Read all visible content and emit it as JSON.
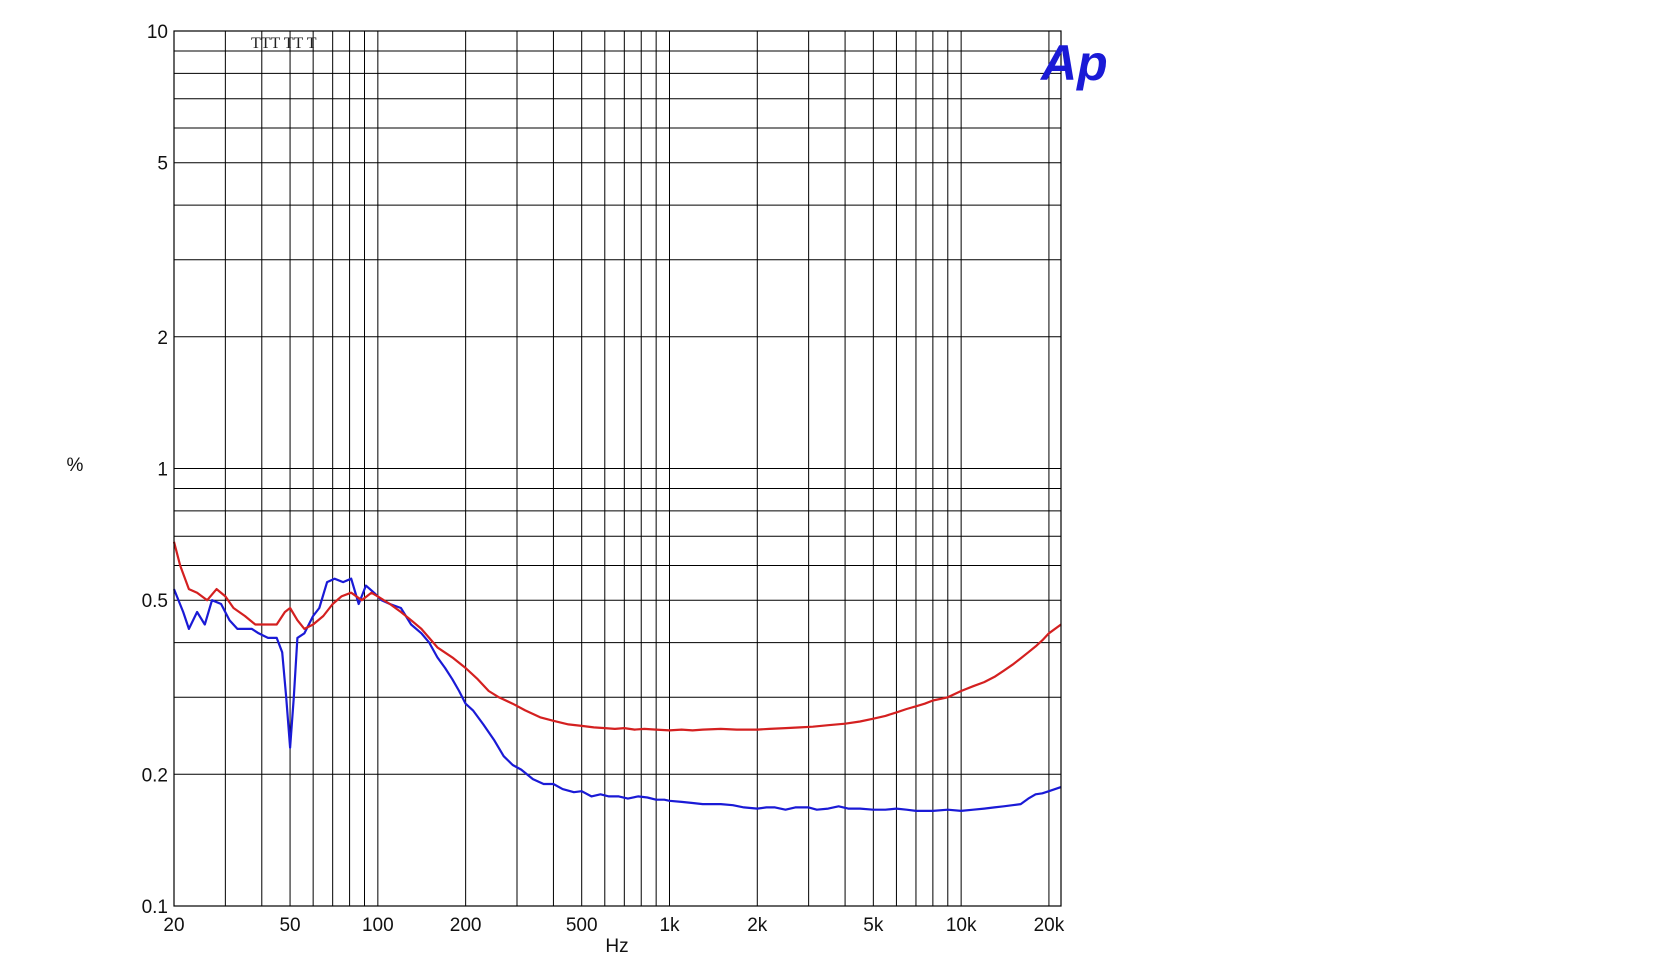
{
  "chart_data": {
    "type": "line",
    "x_scale": "log",
    "y_scale": "log",
    "xlabel": "Hz",
    "ylabel": "%",
    "xlim": [
      20,
      22000
    ],
    "ylim": [
      0.1,
      10
    ],
    "grid": true,
    "legend": "none",
    "x_ticks": [
      {
        "value": 20,
        "label": "20"
      },
      {
        "value": 50,
        "label": "50"
      },
      {
        "value": 100,
        "label": "100"
      },
      {
        "value": 200,
        "label": "200"
      },
      {
        "value": 500,
        "label": "500"
      },
      {
        "value": 1000,
        "label": "1k"
      },
      {
        "value": 2000,
        "label": "2k"
      },
      {
        "value": 5000,
        "label": "5k"
      },
      {
        "value": 10000,
        "label": "10k"
      },
      {
        "value": 20000,
        "label": "20k"
      }
    ],
    "y_ticks": [
      {
        "value": 0.1,
        "label": "0.1"
      },
      {
        "value": 0.2,
        "label": "0.2"
      },
      {
        "value": 0.5,
        "label": "0.5"
      },
      {
        "value": 1,
        "label": "1"
      },
      {
        "value": 2,
        "label": "2"
      },
      {
        "value": 5,
        "label": "5"
      },
      {
        "value": 10,
        "label": "10"
      }
    ],
    "x_minor_grid": [
      30,
      40,
      60,
      70,
      80,
      90,
      300,
      400,
      600,
      700,
      800,
      900,
      3000,
      4000,
      6000,
      7000,
      8000,
      9000
    ],
    "y_minor_grid": [
      0.3,
      0.4,
      0.6,
      0.7,
      0.8,
      0.9,
      3,
      4,
      6,
      7,
      8,
      9
    ],
    "markers": {
      "text": "TTT TT T",
      "values": [
        40,
        45,
        50,
        55,
        60,
        70
      ]
    },
    "logo": "Ap",
    "series": [
      {
        "color": "#1a1ad6",
        "points": [
          [
            20,
            0.53
          ],
          [
            21.5,
            0.47
          ],
          [
            22.5,
            0.43
          ],
          [
            24,
            0.47
          ],
          [
            25.5,
            0.44
          ],
          [
            27,
            0.5
          ],
          [
            29,
            0.49
          ],
          [
            31,
            0.45
          ],
          [
            33,
            0.43
          ],
          [
            35,
            0.43
          ],
          [
            37,
            0.43
          ],
          [
            39,
            0.42
          ],
          [
            42,
            0.41
          ],
          [
            45,
            0.41
          ],
          [
            47,
            0.38
          ],
          [
            48.5,
            0.3
          ],
          [
            50,
            0.23
          ],
          [
            51.5,
            0.3
          ],
          [
            53,
            0.41
          ],
          [
            56,
            0.42
          ],
          [
            60,
            0.46
          ],
          [
            63,
            0.48
          ],
          [
            67,
            0.55
          ],
          [
            71,
            0.56
          ],
          [
            76,
            0.55
          ],
          [
            81,
            0.56
          ],
          [
            86,
            0.49
          ],
          [
            91,
            0.54
          ],
          [
            97,
            0.52
          ],
          [
            103,
            0.5
          ],
          [
            110,
            0.49
          ],
          [
            120,
            0.48
          ],
          [
            130,
            0.44
          ],
          [
            141,
            0.42
          ],
          [
            150,
            0.4
          ],
          [
            160,
            0.37
          ],
          [
            170,
            0.35
          ],
          [
            180,
            0.33
          ],
          [
            190,
            0.31
          ],
          [
            200,
            0.29
          ],
          [
            212,
            0.28
          ],
          [
            230,
            0.26
          ],
          [
            250,
            0.24
          ],
          [
            270,
            0.22
          ],
          [
            290,
            0.21
          ],
          [
            310,
            0.205
          ],
          [
            340,
            0.195
          ],
          [
            370,
            0.19
          ],
          [
            400,
            0.19
          ],
          [
            430,
            0.185
          ],
          [
            470,
            0.182
          ],
          [
            500,
            0.183
          ],
          [
            540,
            0.178
          ],
          [
            580,
            0.18
          ],
          [
            620,
            0.178
          ],
          [
            670,
            0.178
          ],
          [
            720,
            0.176
          ],
          [
            780,
            0.178
          ],
          [
            840,
            0.177
          ],
          [
            900,
            0.175
          ],
          [
            960,
            0.175
          ],
          [
            1000,
            0.174
          ],
          [
            1100,
            0.173
          ],
          [
            1200,
            0.172
          ],
          [
            1300,
            0.171
          ],
          [
            1400,
            0.171
          ],
          [
            1500,
            0.171
          ],
          [
            1650,
            0.17
          ],
          [
            1800,
            0.168
          ],
          [
            2000,
            0.167
          ],
          [
            2150,
            0.168
          ],
          [
            2300,
            0.168
          ],
          [
            2500,
            0.166
          ],
          [
            2700,
            0.168
          ],
          [
            3000,
            0.168
          ],
          [
            3200,
            0.166
          ],
          [
            3500,
            0.167
          ],
          [
            3800,
            0.169
          ],
          [
            4100,
            0.167
          ],
          [
            4500,
            0.167
          ],
          [
            5000,
            0.166
          ],
          [
            5500,
            0.166
          ],
          [
            6000,
            0.167
          ],
          [
            6500,
            0.166
          ],
          [
            7000,
            0.165
          ],
          [
            7500,
            0.165
          ],
          [
            8000,
            0.165
          ],
          [
            9000,
            0.166
          ],
          [
            10000,
            0.165
          ],
          [
            11000,
            0.166
          ],
          [
            12000,
            0.167
          ],
          [
            13000,
            0.168
          ],
          [
            14000,
            0.169
          ],
          [
            15000,
            0.17
          ],
          [
            16000,
            0.171
          ],
          [
            17000,
            0.176
          ],
          [
            18000,
            0.18
          ],
          [
            19000,
            0.181
          ],
          [
            20000,
            0.183
          ],
          [
            22000,
            0.187
          ]
        ]
      },
      {
        "color": "#d42020",
        "points": [
          [
            20,
            0.68
          ],
          [
            21,
            0.6
          ],
          [
            22.5,
            0.53
          ],
          [
            24,
            0.52
          ],
          [
            26,
            0.5
          ],
          [
            28,
            0.53
          ],
          [
            30,
            0.51
          ],
          [
            32,
            0.48
          ],
          [
            35,
            0.46
          ],
          [
            38,
            0.44
          ],
          [
            42,
            0.44
          ],
          [
            45,
            0.44
          ],
          [
            48,
            0.47
          ],
          [
            50,
            0.48
          ],
          [
            53,
            0.45
          ],
          [
            56,
            0.43
          ],
          [
            60,
            0.44
          ],
          [
            65,
            0.46
          ],
          [
            70,
            0.49
          ],
          [
            75,
            0.51
          ],
          [
            81,
            0.52
          ],
          [
            88,
            0.5
          ],
          [
            95,
            0.52
          ],
          [
            100,
            0.51
          ],
          [
            110,
            0.49
          ],
          [
            120,
            0.47
          ],
          [
            130,
            0.45
          ],
          [
            141,
            0.43
          ],
          [
            150,
            0.41
          ],
          [
            160,
            0.39
          ],
          [
            180,
            0.37
          ],
          [
            200,
            0.35
          ],
          [
            220,
            0.33
          ],
          [
            240,
            0.31
          ],
          [
            260,
            0.3
          ],
          [
            290,
            0.29
          ],
          [
            320,
            0.28
          ],
          [
            360,
            0.27
          ],
          [
            400,
            0.265
          ],
          [
            450,
            0.26
          ],
          [
            500,
            0.258
          ],
          [
            550,
            0.256
          ],
          [
            600,
            0.255
          ],
          [
            650,
            0.254
          ],
          [
            700,
            0.255
          ],
          [
            760,
            0.253
          ],
          [
            820,
            0.254
          ],
          [
            900,
            0.253
          ],
          [
            1000,
            0.252
          ],
          [
            1100,
            0.253
          ],
          [
            1200,
            0.252
          ],
          [
            1300,
            0.253
          ],
          [
            1500,
            0.254
          ],
          [
            1700,
            0.253
          ],
          [
            2000,
            0.253
          ],
          [
            2200,
            0.254
          ],
          [
            2500,
            0.255
          ],
          [
            2800,
            0.256
          ],
          [
            3100,
            0.257
          ],
          [
            3500,
            0.259
          ],
          [
            4000,
            0.261
          ],
          [
            4500,
            0.264
          ],
          [
            5000,
            0.268
          ],
          [
            5500,
            0.272
          ],
          [
            6000,
            0.277
          ],
          [
            6500,
            0.282
          ],
          [
            7000,
            0.286
          ],
          [
            7500,
            0.29
          ],
          [
            8000,
            0.295
          ],
          [
            9000,
            0.3
          ],
          [
            10000,
            0.31
          ],
          [
            11000,
            0.318
          ],
          [
            12000,
            0.325
          ],
          [
            13000,
            0.334
          ],
          [
            14000,
            0.345
          ],
          [
            15000,
            0.356
          ],
          [
            16000,
            0.368
          ],
          [
            17000,
            0.38
          ],
          [
            18000,
            0.392
          ],
          [
            19000,
            0.405
          ],
          [
            20000,
            0.42
          ],
          [
            22000,
            0.44
          ]
        ]
      }
    ]
  }
}
